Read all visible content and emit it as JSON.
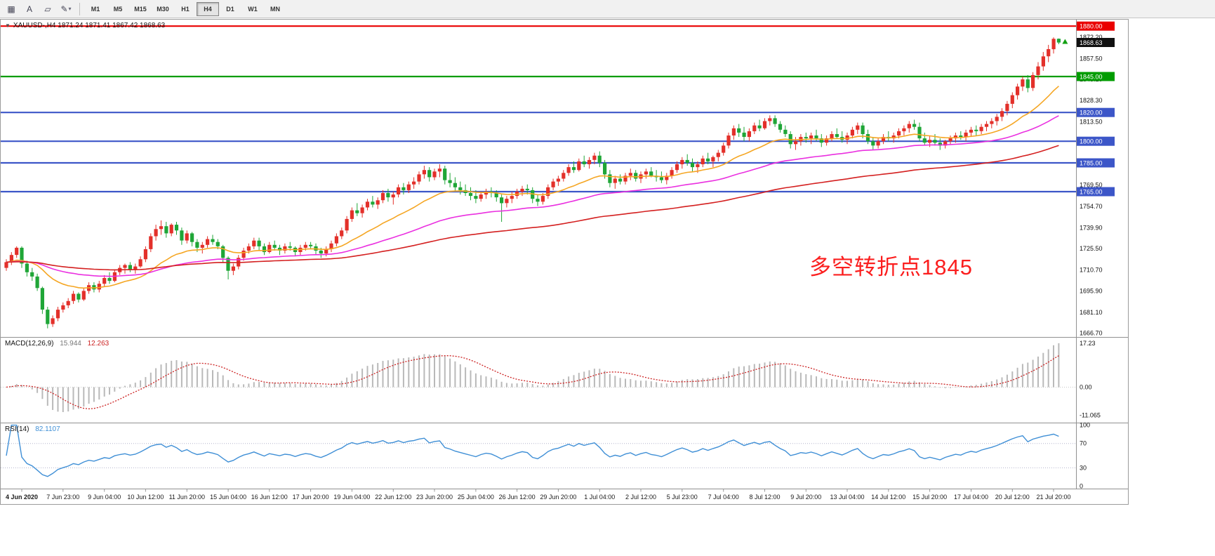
{
  "toolbar": {
    "tools": [
      {
        "name": "windows-tile-icon",
        "glyph": "▦",
        "caret": false
      },
      {
        "name": "text-tool-icon",
        "glyph": "A",
        "caret": false
      },
      {
        "name": "objects-tool-icon",
        "glyph": "▱",
        "caret": false
      },
      {
        "name": "line-studies-icon",
        "glyph": "✎",
        "caret": true
      }
    ],
    "timeframes": [
      "M1",
      "M5",
      "M15",
      "M30",
      "H1",
      "H4",
      "D1",
      "W1",
      "MN"
    ],
    "active_timeframe": "H4"
  },
  "chart_data": {
    "type": "candlestick",
    "symbol": "XAUUSD-",
    "period": "H4",
    "collapse_icon": "▼",
    "symbol_ohlc_line": "XAUUSD-,H4  1871.24 1871.41 1867.42 1868.63",
    "ohlc_current": {
      "open": 1871.24,
      "high": 1871.41,
      "low": 1867.42,
      "close": 1868.63
    },
    "annotation": {
      "text": "多空转折点1845",
      "color": "#fb1e1e"
    },
    "price_range": [
      1664.0,
      1884.5
    ],
    "price_axis": {
      "ticks": [
        "1872.20",
        "1857.50",
        "1843.10",
        "1828.30",
        "1813.50",
        "1769.50",
        "1754.70",
        "1739.90",
        "1725.50",
        "1710.70",
        "1695.90",
        "1681.10",
        "1666.70"
      ],
      "current": "1868.63",
      "current_badge_color": "#101010"
    },
    "hlines": [
      {
        "price": "1880.00",
        "color": "#ea0000"
      },
      {
        "price": "1845.00",
        "color": "#009c00"
      },
      {
        "price": "1820.00",
        "color": "#3c56c8"
      },
      {
        "price": "1800.00",
        "color": "#3c56c8"
      },
      {
        "price": "1785.00",
        "color": "#3c56c8"
      },
      {
        "price": "1765.00",
        "color": "#3c56c8"
      }
    ],
    "x_axis": {
      "labels": [
        "4 Jun 2020",
        "7 Jun 23:00",
        "9 Jun 04:00",
        "10 Jun 12:00",
        "11 Jun 20:00",
        "15 Jun 04:00",
        "16 Jun 12:00",
        "17 Jun 20:00",
        "19 Jun 04:00",
        "22 Jun 12:00",
        "23 Jun 20:00",
        "25 Jun 04:00",
        "26 Jun 12:00",
        "29 Jun 20:00",
        "1 Jul 04:00",
        "2 Jul 12:00",
        "5 Jul 23:00",
        "7 Jul 04:00",
        "8 Jul 12:00",
        "9 Jul 20:00",
        "13 Jul 04:00",
        "14 Jul 12:00",
        "15 Jul 20:00",
        "17 Jul 04:00",
        "20 Jul 12:00",
        "21 Jul 20:00"
      ],
      "start_index": 3,
      "step": 8
    },
    "moving_averages": [
      {
        "period": 20,
        "color": "#f5a623"
      },
      {
        "period": 55,
        "color": "#ea30e0"
      },
      {
        "period": 120,
        "color": "#d42020"
      }
    ],
    "colors": {
      "up": "#e3302a",
      "down": "#1fa637",
      "background": "#ffffff"
    },
    "macd": {
      "label": "MACD(12,26,9)",
      "main_value": "15.944",
      "signal_value": "12.263",
      "params": [
        12,
        26,
        9
      ],
      "ticks": [
        "17.23",
        "0.00",
        "-11.065"
      ],
      "range": [
        19.4,
        -13.9
      ],
      "hist_color": "#b9b9b9",
      "signal_color": "#cc2222"
    },
    "rsi": {
      "label": "RSI(14)",
      "value": "82.1107",
      "period": 14,
      "ticks": [
        "100",
        "70",
        "30",
        "0"
      ],
      "levels": [
        70,
        30
      ],
      "range": [
        103,
        -4
      ],
      "color": "#3f8fd6"
    },
    "candles": [
      [
        1712,
        1718,
        1710,
        1716
      ],
      [
        1716,
        1723,
        1714,
        1721
      ],
      [
        1721,
        1727,
        1719,
        1726
      ],
      [
        1726,
        1727,
        1712,
        1715
      ],
      [
        1715,
        1717,
        1706,
        1709
      ],
      [
        1709,
        1712,
        1703,
        1706
      ],
      [
        1706,
        1708,
        1696,
        1698
      ],
      [
        1698,
        1699,
        1680,
        1683
      ],
      [
        1683,
        1685,
        1670,
        1673
      ],
      [
        1673,
        1679,
        1671,
        1677
      ],
      [
        1677,
        1685,
        1675,
        1683
      ],
      [
        1683,
        1688,
        1681,
        1686
      ],
      [
        1686,
        1691,
        1684,
        1689
      ],
      [
        1689,
        1696,
        1687,
        1694
      ],
      [
        1694,
        1695,
        1688,
        1690
      ],
      [
        1690,
        1698,
        1689,
        1696
      ],
      [
        1696,
        1702,
        1694,
        1700
      ],
      [
        1700,
        1702,
        1695,
        1697
      ],
      [
        1697,
        1703,
        1695,
        1701
      ],
      [
        1701,
        1707,
        1699,
        1705
      ],
      [
        1705,
        1709,
        1701,
        1703
      ],
      [
        1703,
        1711,
        1702,
        1709
      ],
      [
        1709,
        1714,
        1707,
        1712
      ],
      [
        1712,
        1715,
        1708,
        1714
      ],
      [
        1714,
        1716,
        1709,
        1711
      ],
      [
        1711,
        1715,
        1708,
        1713
      ],
      [
        1713,
        1720,
        1712,
        1718
      ],
      [
        1718,
        1727,
        1716,
        1725
      ],
      [
        1725,
        1736,
        1723,
        1734
      ],
      [
        1734,
        1742,
        1731,
        1739
      ],
      [
        1739,
        1745,
        1735,
        1741
      ],
      [
        1741,
        1744,
        1733,
        1736
      ],
      [
        1736,
        1743,
        1734,
        1742
      ],
      [
        1742,
        1744,
        1735,
        1738
      ],
      [
        1738,
        1740,
        1728,
        1731
      ],
      [
        1731,
        1738,
        1729,
        1736
      ],
      [
        1736,
        1737,
        1727,
        1730
      ],
      [
        1730,
        1732,
        1723,
        1726
      ],
      [
        1726,
        1730,
        1722,
        1728
      ],
      [
        1728,
        1734,
        1726,
        1732
      ],
      [
        1732,
        1735,
        1728,
        1730
      ],
      [
        1730,
        1732,
        1725,
        1727
      ],
      [
        1727,
        1728,
        1716,
        1719
      ],
      [
        1719,
        1720,
        1704,
        1710
      ],
      [
        1710,
        1715,
        1707,
        1713
      ],
      [
        1713,
        1721,
        1711,
        1719
      ],
      [
        1719,
        1726,
        1717,
        1724
      ],
      [
        1724,
        1729,
        1722,
        1727
      ],
      [
        1727,
        1733,
        1725,
        1731
      ],
      [
        1731,
        1733,
        1724,
        1727
      ],
      [
        1727,
        1729,
        1721,
        1723
      ],
      [
        1723,
        1730,
        1722,
        1728
      ],
      [
        1728,
        1731,
        1724,
        1726
      ],
      [
        1726,
        1728,
        1721,
        1724
      ],
      [
        1724,
        1729,
        1722,
        1727
      ],
      [
        1727,
        1730,
        1724,
        1726
      ],
      [
        1726,
        1727,
        1720,
        1723
      ],
      [
        1723,
        1728,
        1721,
        1726
      ],
      [
        1726,
        1730,
        1724,
        1728
      ],
      [
        1728,
        1730,
        1725,
        1727
      ],
      [
        1727,
        1729,
        1721,
        1724
      ],
      [
        1724,
        1726,
        1719,
        1722
      ],
      [
        1722,
        1727,
        1720,
        1725
      ],
      [
        1725,
        1731,
        1723,
        1729
      ],
      [
        1729,
        1736,
        1727,
        1734
      ],
      [
        1734,
        1740,
        1732,
        1738
      ],
      [
        1738,
        1748,
        1736,
        1746
      ],
      [
        1746,
        1754,
        1744,
        1752
      ],
      [
        1752,
        1757,
        1748,
        1750
      ],
      [
        1750,
        1756,
        1747,
        1754
      ],
      [
        1754,
        1760,
        1752,
        1758
      ],
      [
        1758,
        1762,
        1754,
        1756
      ],
      [
        1756,
        1761,
        1753,
        1759
      ],
      [
        1759,
        1766,
        1757,
        1764
      ],
      [
        1764,
        1767,
        1758,
        1761
      ],
      [
        1761,
        1765,
        1756,
        1763
      ],
      [
        1763,
        1770,
        1761,
        1768
      ],
      [
        1768,
        1771,
        1763,
        1766
      ],
      [
        1766,
        1772,
        1764,
        1770
      ],
      [
        1770,
        1775,
        1767,
        1772
      ],
      [
        1772,
        1779,
        1770,
        1777
      ],
      [
        1777,
        1783,
        1774,
        1780
      ],
      [
        1780,
        1782,
        1772,
        1775
      ],
      [
        1775,
        1781,
        1773,
        1779
      ],
      [
        1779,
        1784,
        1775,
        1781
      ],
      [
        1781,
        1783,
        1770,
        1773
      ],
      [
        1773,
        1778,
        1768,
        1771
      ],
      [
        1771,
        1775,
        1765,
        1768
      ],
      [
        1768,
        1772,
        1763,
        1766
      ],
      [
        1766,
        1770,
        1762,
        1764
      ],
      [
        1764,
        1768,
        1759,
        1762
      ],
      [
        1762,
        1766,
        1757,
        1760
      ],
      [
        1760,
        1765,
        1758,
        1763
      ],
      [
        1763,
        1767,
        1760,
        1765
      ],
      [
        1765,
        1768,
        1761,
        1764
      ],
      [
        1764,
        1766,
        1758,
        1761
      ],
      [
        1761,
        1763,
        1744,
        1757
      ],
      [
        1757,
        1762,
        1754,
        1760
      ],
      [
        1760,
        1765,
        1757,
        1762
      ],
      [
        1762,
        1767,
        1760,
        1765
      ],
      [
        1765,
        1769,
        1762,
        1767
      ],
      [
        1767,
        1770,
        1763,
        1766
      ],
      [
        1766,
        1768,
        1757,
        1760
      ],
      [
        1760,
        1763,
        1755,
        1758
      ],
      [
        1758,
        1764,
        1756,
        1762
      ],
      [
        1762,
        1770,
        1760,
        1768
      ],
      [
        1768,
        1774,
        1766,
        1772
      ],
      [
        1772,
        1776,
        1769,
        1774
      ],
      [
        1774,
        1780,
        1772,
        1778
      ],
      [
        1778,
        1784,
        1776,
        1782
      ],
      [
        1782,
        1786,
        1778,
        1780
      ],
      [
        1780,
        1788,
        1779,
        1786
      ],
      [
        1786,
        1790,
        1782,
        1784
      ],
      [
        1784,
        1789,
        1781,
        1787
      ],
      [
        1787,
        1792,
        1784,
        1790
      ],
      [
        1790,
        1793,
        1782,
        1785
      ],
      [
        1785,
        1787,
        1774,
        1777
      ],
      [
        1777,
        1780,
        1768,
        1771
      ],
      [
        1771,
        1776,
        1767,
        1774
      ],
      [
        1774,
        1777,
        1770,
        1772
      ],
      [
        1772,
        1778,
        1770,
        1776
      ],
      [
        1776,
        1781,
        1773,
        1778
      ],
      [
        1778,
        1780,
        1772,
        1774
      ],
      [
        1774,
        1779,
        1771,
        1777
      ],
      [
        1777,
        1781,
        1774,
        1779
      ],
      [
        1779,
        1782,
        1775,
        1776
      ],
      [
        1776,
        1780,
        1772,
        1775
      ],
      [
        1775,
        1779,
        1771,
        1773
      ],
      [
        1773,
        1778,
        1770,
        1776
      ],
      [
        1776,
        1782,
        1774,
        1780
      ],
      [
        1780,
        1786,
        1778,
        1784
      ],
      [
        1784,
        1789,
        1781,
        1787
      ],
      [
        1787,
        1791,
        1783,
        1785
      ],
      [
        1785,
        1788,
        1779,
        1782
      ],
      [
        1782,
        1786,
        1778,
        1784
      ],
      [
        1784,
        1790,
        1782,
        1788
      ],
      [
        1788,
        1792,
        1784,
        1786
      ],
      [
        1786,
        1790,
        1782,
        1789
      ],
      [
        1789,
        1794,
        1786,
        1792
      ],
      [
        1792,
        1799,
        1790,
        1797
      ],
      [
        1797,
        1806,
        1795,
        1804
      ],
      [
        1804,
        1811,
        1801,
        1809
      ],
      [
        1809,
        1812,
        1803,
        1806
      ],
      [
        1806,
        1810,
        1800,
        1803
      ],
      [
        1803,
        1809,
        1800,
        1807
      ],
      [
        1807,
        1813,
        1805,
        1811
      ],
      [
        1811,
        1815,
        1807,
        1809
      ],
      [
        1809,
        1816,
        1808,
        1814
      ],
      [
        1814,
        1818,
        1811,
        1816
      ],
      [
        1816,
        1818,
        1810,
        1812
      ],
      [
        1812,
        1814,
        1806,
        1808
      ],
      [
        1808,
        1811,
        1803,
        1805
      ],
      [
        1805,
        1807,
        1795,
        1798
      ],
      [
        1798,
        1803,
        1794,
        1800
      ],
      [
        1800,
        1805,
        1797,
        1803
      ],
      [
        1803,
        1806,
        1799,
        1802
      ],
      [
        1802,
        1806,
        1798,
        1804
      ],
      [
        1804,
        1808,
        1800,
        1802
      ],
      [
        1802,
        1805,
        1796,
        1799
      ],
      [
        1799,
        1804,
        1797,
        1802
      ],
      [
        1802,
        1807,
        1800,
        1805
      ],
      [
        1805,
        1809,
        1802,
        1803
      ],
      [
        1803,
        1807,
        1799,
        1801
      ],
      [
        1801,
        1806,
        1798,
        1804
      ],
      [
        1804,
        1810,
        1802,
        1808
      ],
      [
        1808,
        1813,
        1805,
        1811
      ],
      [
        1811,
        1813,
        1802,
        1805
      ],
      [
        1805,
        1808,
        1798,
        1800
      ],
      [
        1800,
        1803,
        1794,
        1797
      ],
      [
        1797,
        1802,
        1795,
        1800
      ],
      [
        1800,
        1805,
        1798,
        1803
      ],
      [
        1803,
        1807,
        1800,
        1802
      ],
      [
        1802,
        1806,
        1799,
        1804
      ],
      [
        1804,
        1809,
        1802,
        1807
      ],
      [
        1807,
        1811,
        1804,
        1809
      ],
      [
        1809,
        1814,
        1806,
        1812
      ],
      [
        1812,
        1815,
        1808,
        1810
      ],
      [
        1810,
        1813,
        1800,
        1802
      ],
      [
        1802,
        1806,
        1797,
        1799
      ],
      [
        1799,
        1804,
        1796,
        1801
      ],
      [
        1801,
        1805,
        1797,
        1799
      ],
      [
        1799,
        1802,
        1794,
        1797
      ],
      [
        1797,
        1801,
        1795,
        1800
      ],
      [
        1800,
        1804,
        1798,
        1802
      ],
      [
        1802,
        1806,
        1799,
        1804
      ],
      [
        1804,
        1807,
        1801,
        1803
      ],
      [
        1803,
        1808,
        1800,
        1806
      ],
      [
        1806,
        1810,
        1803,
        1808
      ],
      [
        1808,
        1811,
        1804,
        1807
      ],
      [
        1807,
        1812,
        1805,
        1810
      ],
      [
        1810,
        1814,
        1807,
        1812
      ],
      [
        1812,
        1816,
        1809,
        1814
      ],
      [
        1814,
        1819,
        1811,
        1817
      ],
      [
        1817,
        1823,
        1814,
        1821
      ],
      [
        1821,
        1828,
        1818,
        1826
      ],
      [
        1826,
        1834,
        1823,
        1832
      ],
      [
        1832,
        1840,
        1829,
        1838
      ],
      [
        1838,
        1845,
        1835,
        1843
      ],
      [
        1843,
        1846,
        1834,
        1837
      ],
      [
        1837,
        1848,
        1835,
        1846
      ],
      [
        1846,
        1855,
        1843,
        1852
      ],
      [
        1852,
        1862,
        1849,
        1859
      ],
      [
        1859,
        1867,
        1855,
        1864
      ],
      [
        1864,
        1872.2,
        1861,
        1871.2
      ],
      [
        1871.24,
        1871.41,
        1867.42,
        1868.63
      ]
    ]
  }
}
